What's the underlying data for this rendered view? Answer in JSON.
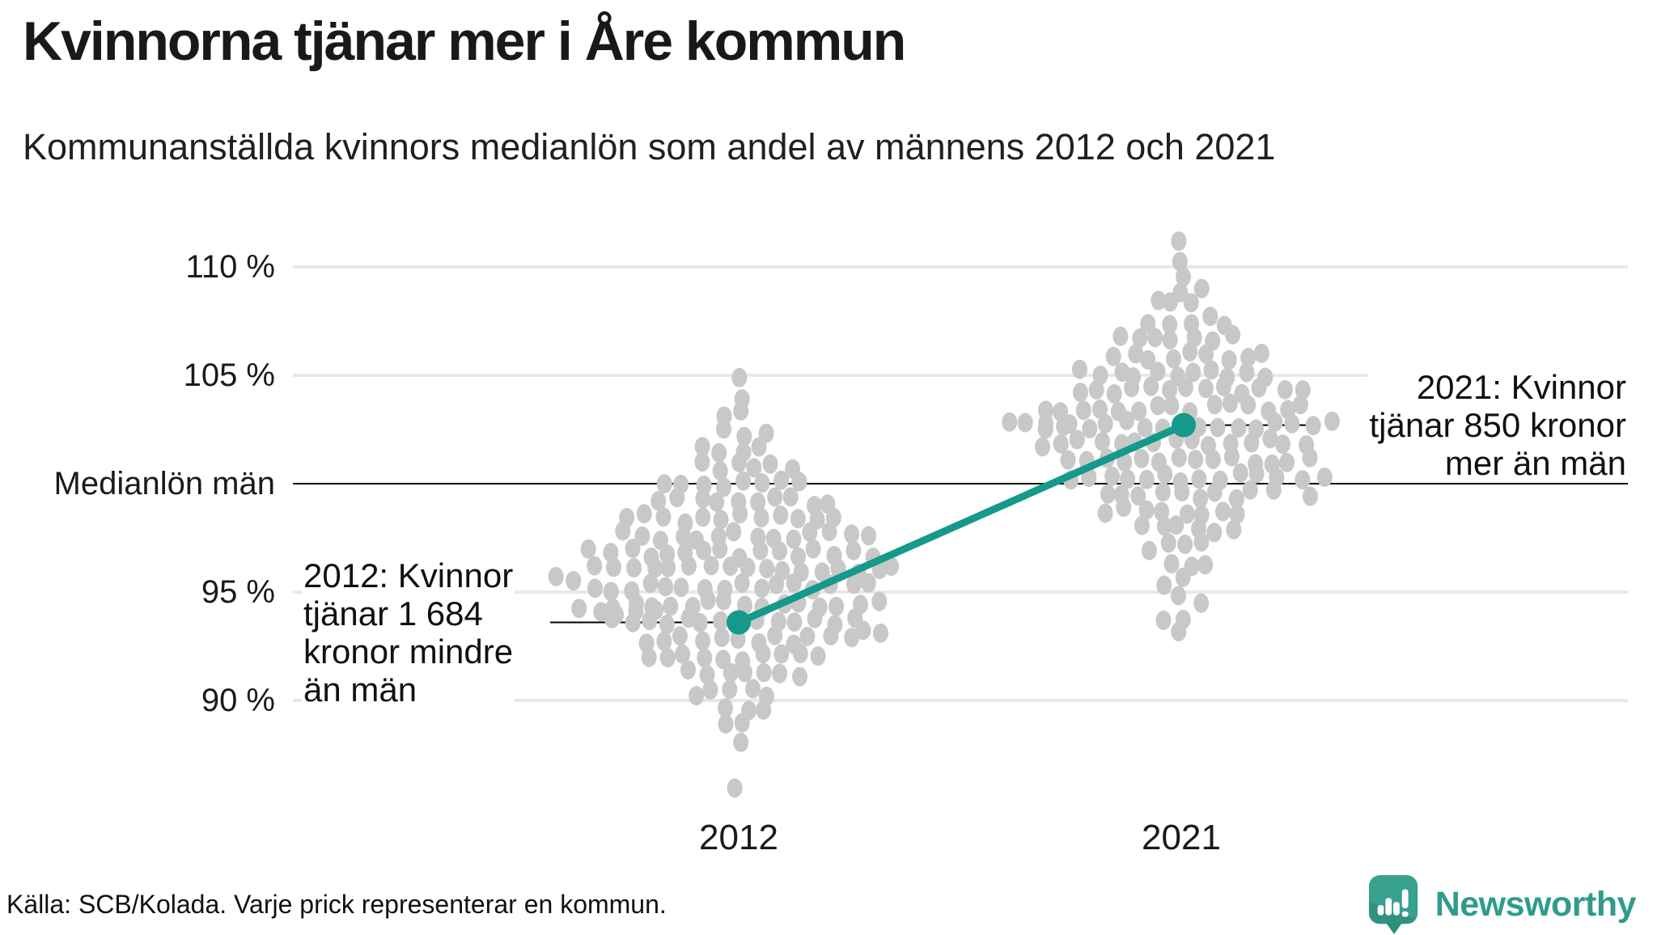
{
  "title": "Kvinnorna tjänar mer i Åre kommun",
  "subtitle": "Kommunanställda kvinnors medianlön som andel av männens 2012 och 2021",
  "footer": {
    "source": "Källa: SCB/Kolada. Varje prick representerar en kommun."
  },
  "logo": {
    "name": "Newsworthy",
    "icon": "speech-bubble-bar-chart-icon"
  },
  "colors": {
    "accent_teal": "#15998a",
    "dot_gray": "#c8c8c8",
    "grid_light": "#e8e8eb",
    "reference_black": "#000000",
    "text": "#1a1a1a",
    "logo_teal": "#2f9b8d",
    "logo_icon_teal": "#38a18e",
    "logo_icon_dark": "#1f8473"
  },
  "chart_data": {
    "type": "beeswarm-slope",
    "title": "Kvinnorna tjänar mer i Åre kommun",
    "subtitle": "Kommunanställda kvinnors medianlön som andel av männens 2012 och 2021",
    "unit": "% av männens medianlön",
    "categories": [
      "2012",
      "2021"
    ],
    "y_axis": {
      "ylim": [
        84,
        115
      ],
      "gridlines": [
        110,
        105,
        95,
        90
      ],
      "reference_line": 100,
      "ticks": [
        {
          "value": 110,
          "label": "110 %"
        },
        {
          "value": 105,
          "label": "105 %"
        },
        {
          "value": 100,
          "label": "Medianlön män"
        },
        {
          "value": 95,
          "label": "95 %"
        },
        {
          "value": 90,
          "label": "90 %"
        }
      ]
    },
    "highlight": {
      "name": "Åre kommun",
      "series": [
        {
          "year": "2012",
          "value": 93.6
        },
        {
          "year": "2021",
          "value": 102.7
        }
      ]
    },
    "annotations": [
      {
        "year": "2012",
        "value": 93.6,
        "align": "left",
        "lines": [
          "2012: Kvinnor",
          "tjänar 1 684",
          "kronor mindre",
          "än män"
        ]
      },
      {
        "year": "2021",
        "value": 102.7,
        "align": "right",
        "lines": [
          "2021: Kvinnor",
          "tjänar 850 kronor",
          "mer än män"
        ]
      }
    ],
    "distributions": {
      "2012": {
        "bins": [
          [
            104.9,
            1
          ],
          [
            104.0,
            1
          ],
          [
            103.2,
            2
          ],
          [
            102.4,
            3
          ],
          [
            101.6,
            4
          ],
          [
            100.8,
            6
          ],
          [
            100.0,
            8
          ],
          [
            99.2,
            10
          ],
          [
            98.4,
            12
          ],
          [
            97.6,
            14
          ],
          [
            96.8,
            16
          ],
          [
            96.0,
            17
          ],
          [
            95.2,
            16
          ],
          [
            94.4,
            15
          ],
          [
            93.6,
            14
          ],
          [
            92.8,
            12
          ],
          [
            92.0,
            10
          ],
          [
            91.2,
            7
          ],
          [
            90.4,
            5
          ],
          [
            89.6,
            3
          ],
          [
            88.8,
            2
          ],
          [
            88.1,
            1
          ],
          [
            86.1,
            1
          ]
        ],
        "outliers": [
          [
            94.15,
            -195
          ],
          [
            94.2,
            -172
          ],
          [
            94.1,
            -149
          ],
          [
            94.18,
            -126
          ],
          [
            94.12,
            -103
          ],
          [
            95.7,
            -225
          ],
          [
            95.65,
            -202
          ],
          [
            93.1,
            152
          ],
          [
            93.05,
            175
          ]
        ]
      },
      "2021": {
        "bins": [
          [
            111.3,
            1
          ],
          [
            110.3,
            1
          ],
          [
            109.7,
            1
          ],
          [
            109.0,
            2
          ],
          [
            108.3,
            3
          ],
          [
            107.5,
            5
          ],
          [
            106.7,
            7
          ],
          [
            105.9,
            9
          ],
          [
            105.1,
            11
          ],
          [
            104.3,
            13
          ],
          [
            103.5,
            15
          ],
          [
            102.7,
            16
          ],
          [
            101.9,
            15
          ],
          [
            101.1,
            14
          ],
          [
            100.3,
            12
          ],
          [
            99.5,
            10
          ],
          [
            98.7,
            8
          ],
          [
            97.9,
            6
          ],
          [
            97.1,
            4
          ],
          [
            96.3,
            3
          ],
          [
            95.5,
            2
          ],
          [
            94.7,
            2
          ],
          [
            93.9,
            2
          ],
          [
            93.1,
            1
          ]
        ],
        "outliers": [
          [
            102.75,
            -215
          ],
          [
            102.7,
            -192
          ],
          [
            102.78,
            -169
          ],
          [
            102.72,
            -146
          ],
          [
            100.25,
            152
          ],
          [
            100.2,
            175
          ],
          [
            99.3,
            162
          ]
        ]
      }
    },
    "legend": "none",
    "grid": "horizontal-only"
  }
}
